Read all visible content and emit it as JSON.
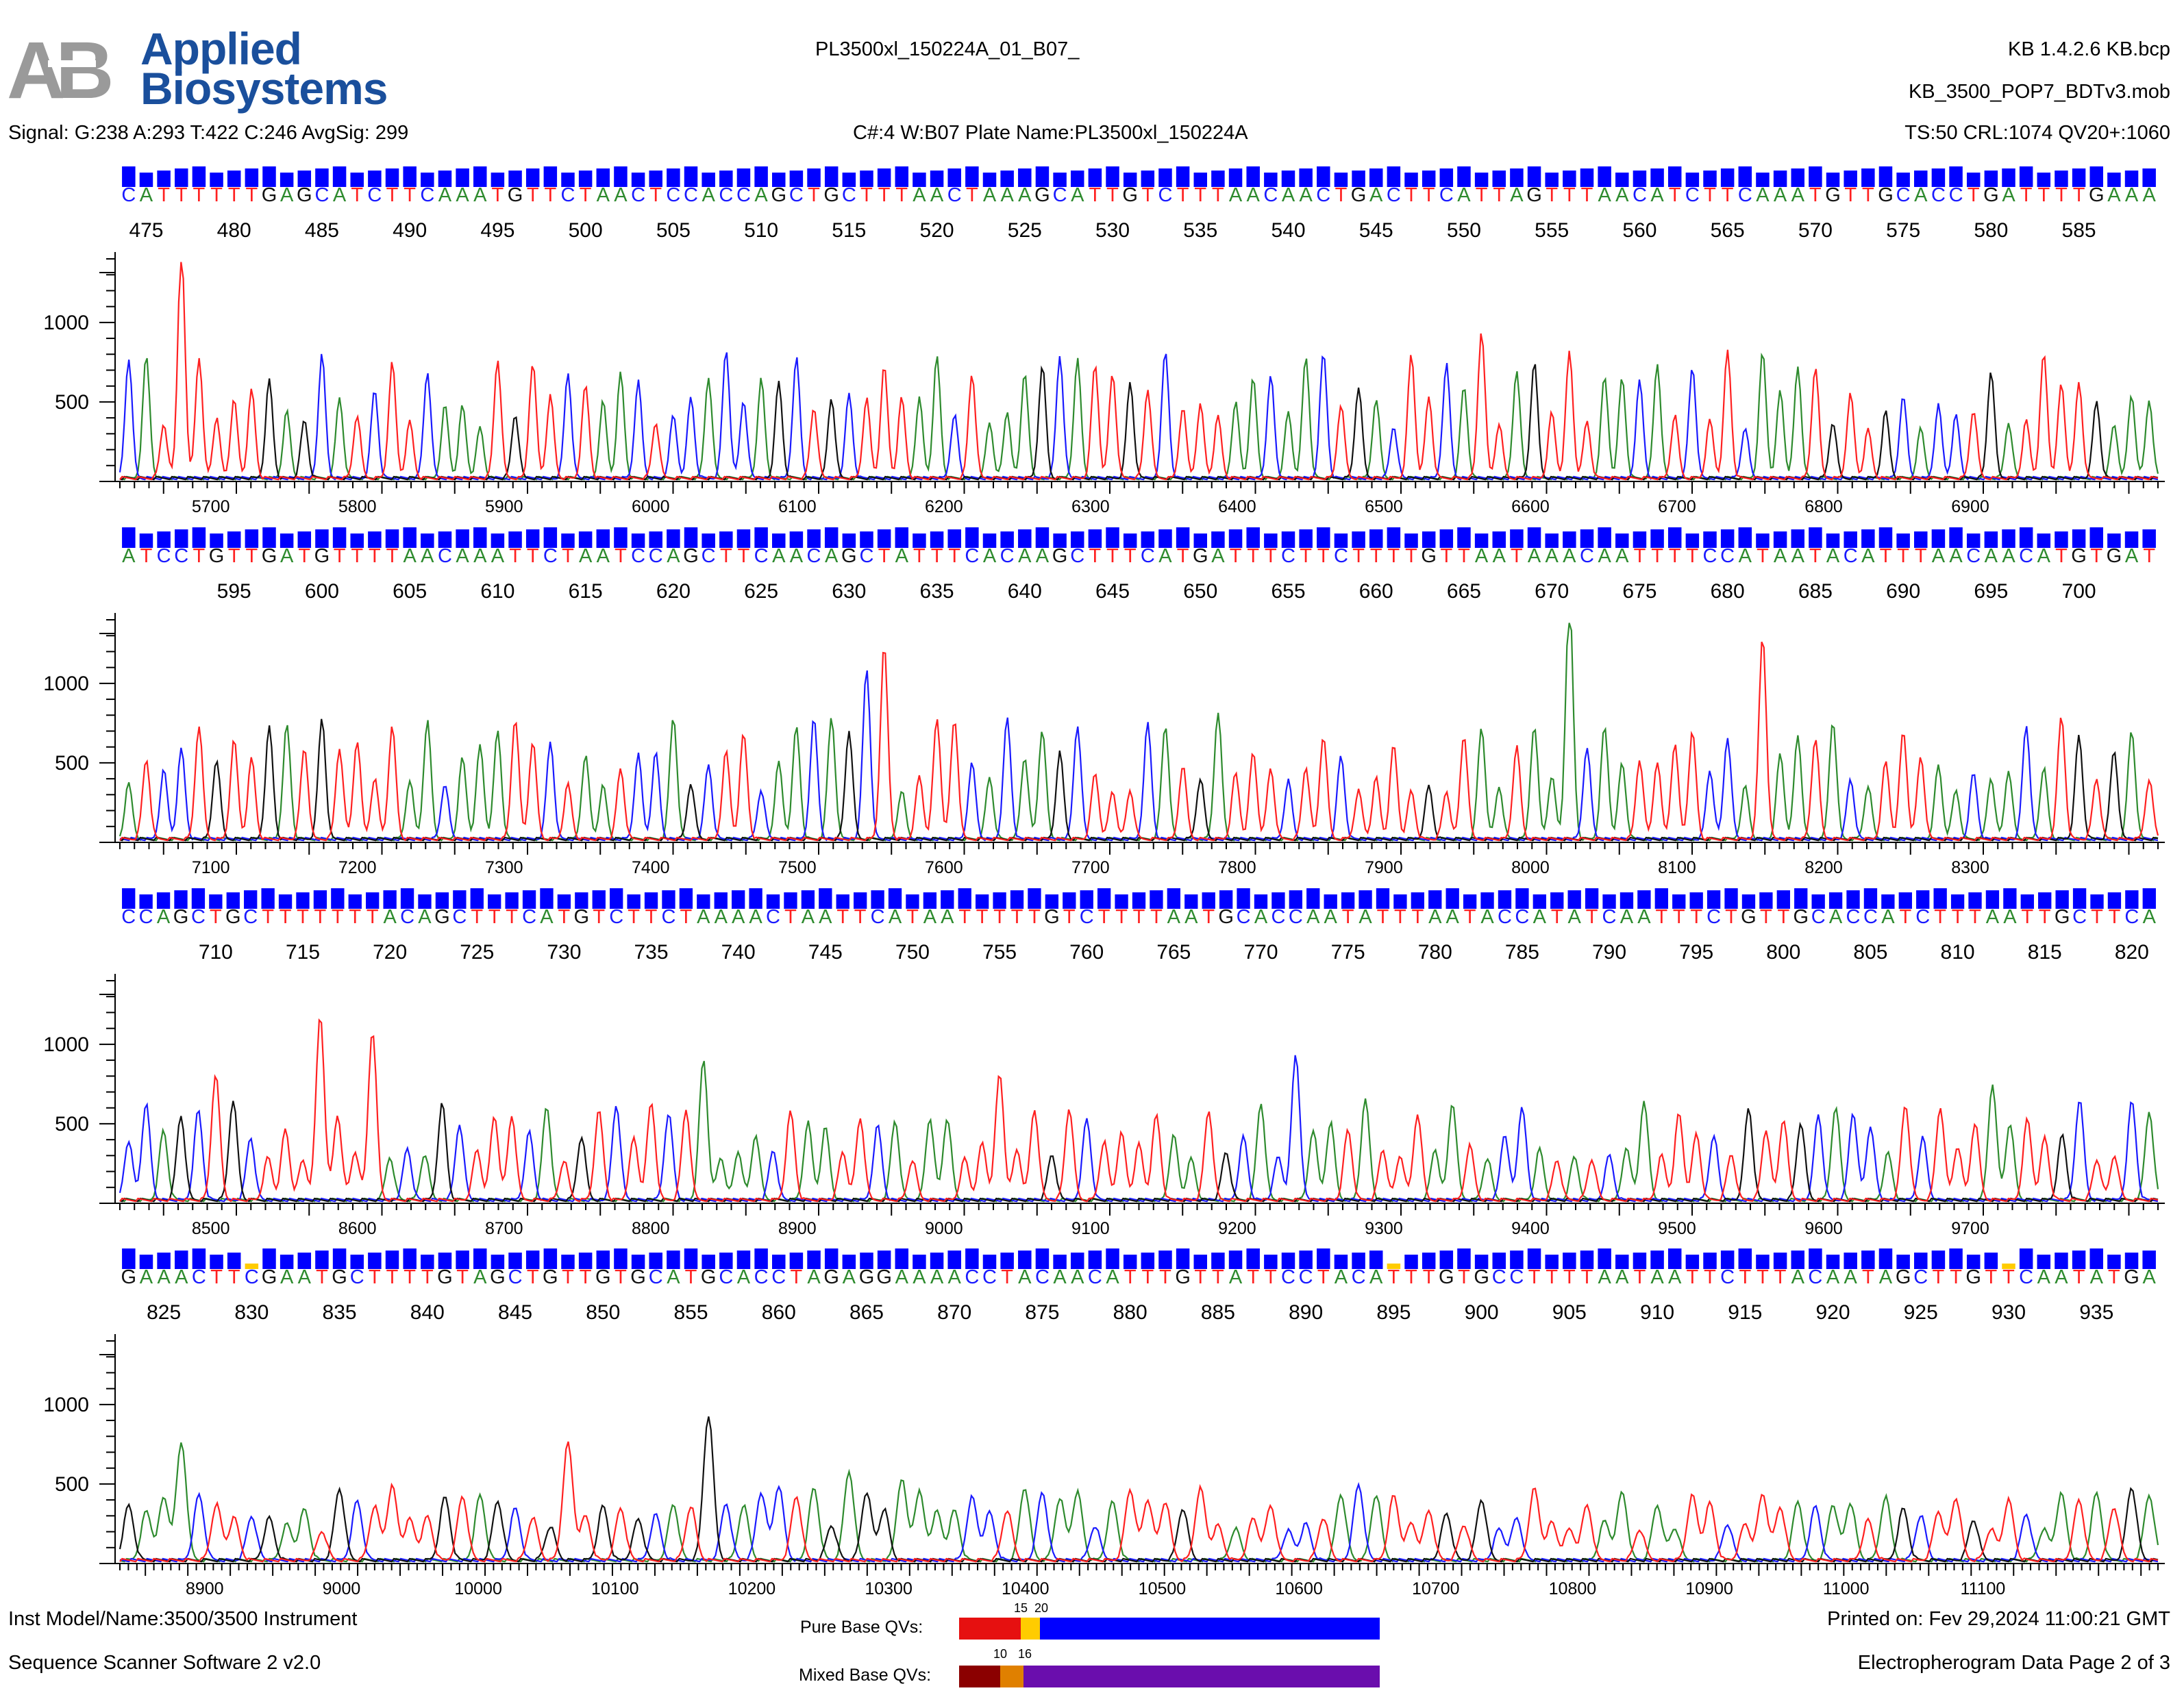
{
  "header": {
    "logo_line1": "Applied",
    "logo_line2": "Biosystems",
    "logo_mark": "AB",
    "sample_name": "PL3500xl_150224A_01_B07_",
    "signal": "Signal: G:238 A:293 T:422 C:246 AvgSig: 299",
    "capillary_info": "C#:4  W:B07  Plate Name:PL3500xl_150224A",
    "basecaller_version": "KB 1.4.2.6   KB.bcp",
    "mobility_file": "KB_3500_POP7_BDTv3.mob",
    "trace_stats": "TS:50  CRL:1074  QV20+:1060"
  },
  "footer": {
    "instrument": "Inst Model/Name:3500/3500 Instrument",
    "software": "Sequence Scanner Software 2 v2.0",
    "printed_on": "Printed on: Fev 29,2024 11:00:21 GMT",
    "page_info": "Electropherogram Data Page 2 of 3",
    "pure_qv_label": "Pure Base QVs:",
    "pure_qv_ticks": [
      "15",
      "20"
    ],
    "mixed_qv_label": "Mixed Base QVs:",
    "mixed_qv_ticks": [
      "10",
      "16"
    ]
  },
  "colors": {
    "A": "#2e8b2e",
    "C": "#1a1aff",
    "G": "#111111",
    "T": "#ff2020",
    "qv_bar": "#0000ff",
    "qv_low": "#ffcc00",
    "logo": "#1a4f9c"
  },
  "chart_data": {
    "type": "line",
    "title": "",
    "ylabel": "",
    "y_ticks": [
      500,
      1000
    ],
    "ylim": [
      0,
      1400
    ],
    "panels": [
      {
        "sequence": "CATTTTTTGAGCATCTTCAAATGTTCTAACTCCACCAGCTGCTTTAACTAAAGCATTGTCTTTAACAACTGACTTCATTAGTTTAACATCTTCAAATGTTGCACCTGATTTTGAAA",
        "base_start": 474,
        "base_ticks": [
          475,
          480,
          485,
          490,
          495,
          500,
          505,
          510,
          515,
          520,
          525,
          530,
          535,
          540,
          545,
          550,
          555,
          560,
          565,
          570,
          575,
          580,
          585
        ],
        "scan_range": [
          5620,
          7020
        ],
        "scan_ticks": [
          5700,
          5800,
          5900,
          6000,
          6100,
          6200,
          6300,
          6400,
          6500,
          6600,
          6700,
          6800,
          6900
        ],
        "amplitude": 560,
        "peak_width": 0.42,
        "qv_low_indices": []
      },
      {
        "sequence": "ATCCTGTTGATGTTTTAACAAATTCTAATCCAGCTTCAACAGCTATTTCACAAGCTTTCATGATTTCTTCTTTTGTTAATAAACAATTTTCCATAATACATTTAACAACATGTGAT",
        "base_start": 589,
        "base_ticks": [
          595,
          600,
          605,
          610,
          615,
          620,
          625,
          630,
          635,
          640,
          645,
          650,
          655,
          660,
          665,
          670,
          675,
          680,
          685,
          690,
          695,
          700
        ],
        "scan_range": [
          7020,
          8420
        ],
        "scan_ticks": [
          7100,
          7200,
          7300,
          7400,
          7500,
          7600,
          7700,
          7800,
          7900,
          8000,
          8100,
          8200,
          8300
        ],
        "amplitude": 540,
        "peak_width": 0.44,
        "qv_low_indices": []
      },
      {
        "sequence": "CCAGCTGCTTTTTTTACAGCTTTCATGTCTTCTAAAACTAATTCATAATTTTTGTCTTTTAATGCACCAATATTTAATACCATATCAATTTCTGTTGCACCATCTTTAATTGCTTCA",
        "base_start": 705,
        "base_ticks": [
          710,
          715,
          720,
          725,
          730,
          735,
          740,
          745,
          750,
          755,
          760,
          765,
          770,
          775,
          780,
          785,
          790,
          795,
          800,
          805,
          810,
          815,
          820
        ],
        "scan_range": [
          8420,
          9820
        ],
        "scan_ticks": [
          8500,
          8600,
          8700,
          8800,
          8900,
          9000,
          9100,
          9200,
          9300,
          9400,
          9500,
          9600,
          9700
        ],
        "amplitude": 440,
        "peak_width": 0.5,
        "qv_low_indices": []
      },
      {
        "sequence": "GAAACTTCGAATGCTTTTGTAGCTGTTGTGCATGCACCTAGAGGAAAACCTACAACATTTGTTATTCCTACATTTGTGCCTTTTAATAATTCTTTACAATAGCTTGTTCAATATGA",
        "base_start": 823,
        "base_ticks": [
          825,
          830,
          835,
          840,
          845,
          850,
          855,
          860,
          865,
          870,
          875,
          880,
          885,
          890,
          895,
          900,
          905,
          910,
          915,
          920,
          925,
          930,
          935
        ],
        "scan_range": [
          8820,
          11220
        ],
        "scan_ticks": [
          8900,
          9000,
          10000,
          10100,
          10200,
          10300,
          10400,
          10500,
          10600,
          10700,
          10800,
          10900,
          11000,
          11100
        ],
        "amplitude": 330,
        "peak_width": 0.6,
        "qv_low_indices": [
          7,
          72,
          107
        ]
      }
    ]
  }
}
